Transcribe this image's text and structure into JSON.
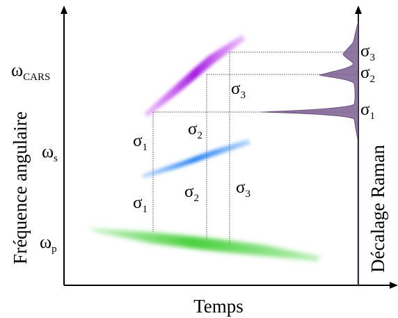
{
  "axes": {
    "x_title": "Temps",
    "y_title": "Fréquence angulaire",
    "right_title": "Décalage Raman"
  },
  "frequency_labels": [
    {
      "symbol": "ω",
      "sub": "CARS"
    },
    {
      "symbol": "ω",
      "sub": "s"
    },
    {
      "symbol": "ω",
      "sub": "p"
    }
  ],
  "sigma_labels": {
    "between_pump_stokes": [
      {
        "symbol": "σ",
        "sub": "1"
      },
      {
        "symbol": "σ",
        "sub": "2"
      },
      {
        "symbol": "σ",
        "sub": "3"
      }
    ],
    "between_stokes_cars": [
      {
        "symbol": "σ",
        "sub": "1"
      },
      {
        "symbol": "σ",
        "sub": "2"
      },
      {
        "symbol": "σ",
        "sub": "3"
      }
    ],
    "raman_peaks": [
      {
        "symbol": "σ",
        "sub": "1"
      },
      {
        "symbol": "σ",
        "sub": "2"
      },
      {
        "symbol": "σ",
        "sub": "3"
      }
    ]
  },
  "colors": {
    "pump": "#3fcf33",
    "stokes": "#1e7ff0",
    "cars": "#b21ee6",
    "raman_fill": "#7c5f92",
    "axis": "#000000",
    "guide": "#555555"
  }
}
